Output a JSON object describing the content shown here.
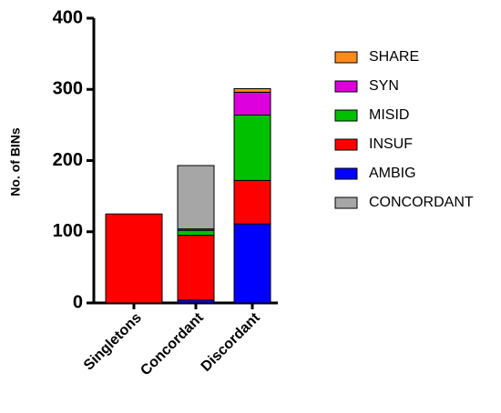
{
  "chart_data": {
    "type": "stacked_bar",
    "y_label": "No. of BINs",
    "categories": [
      "Singletons",
      "Concordant",
      "Discordant"
    ],
    "series": [
      {
        "name": "AMBIG",
        "color": "#0000ff",
        "values": [
          0,
          4,
          111
        ]
      },
      {
        "name": "INSUF",
        "color": "#ff0000",
        "values": [
          125,
          91,
          61
        ]
      },
      {
        "name": "MISID",
        "color": "#00c000",
        "values": [
          0,
          7,
          92
        ]
      },
      {
        "name": "SYN",
        "color": "#dd00dd",
        "values": [
          0,
          2,
          32
        ]
      },
      {
        "name": "SHARE",
        "color": "#ff8c1a",
        "values": [
          0,
          0,
          5
        ]
      },
      {
        "name": "CONCORDANT",
        "color": "#a6a6a6",
        "values": [
          0,
          89,
          0
        ]
      }
    ],
    "ylim": [
      0,
      400
    ],
    "yticks": [
      0,
      100,
      200,
      300,
      400
    ]
  }
}
